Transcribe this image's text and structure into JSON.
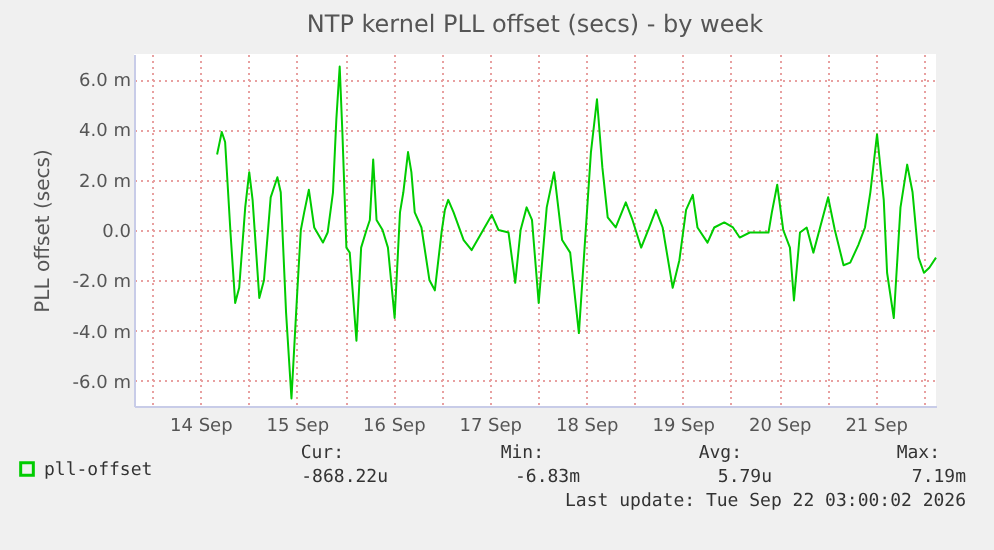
{
  "chart_data": {
    "type": "line",
    "title": "NTP kernel PLL offset (secs) - by week",
    "ylabel": "PLL offset (secs)",
    "x": [
      "2026-09-14T16:10",
      "2026-09-14T17:20",
      "2026-09-14T18:10",
      "2026-09-14T19:30",
      "2026-09-14T20:40",
      "2026-09-14T21:40",
      "2026-09-14T23:10",
      "2026-09-15T00:10",
      "2026-09-15T01:00",
      "2026-09-15T02:40",
      "2026-09-15T03:50",
      "2026-09-15T05:30",
      "2026-09-15T07:10",
      "2026-09-15T08:00",
      "2026-09-15T09:20",
      "2026-09-15T10:40",
      "2026-09-15T12:10",
      "2026-09-15T13:00",
      "2026-09-15T13:50",
      "2026-09-15T15:00",
      "2026-09-15T16:20",
      "2026-09-15T18:30",
      "2026-09-15T19:40",
      "2026-09-15T21:00",
      "2026-09-15T21:50",
      "2026-09-15T22:40",
      "2026-09-15T23:20",
      "2026-09-16T00:20",
      "2026-09-16T01:10",
      "2026-09-16T02:50",
      "2026-09-16T04:00",
      "2026-09-16T05:20",
      "2026-09-16T06:10",
      "2026-09-16T07:00",
      "2026-09-16T07:50",
      "2026-09-16T09:20",
      "2026-09-16T10:40",
      "2026-09-16T12:20",
      "2026-09-16T13:40",
      "2026-09-16T14:30",
      "2026-09-16T15:40",
      "2026-09-16T16:30",
      "2026-09-16T17:20",
      "2026-09-16T19:00",
      "2026-09-16T21:00",
      "2026-09-16T22:20",
      "2026-09-17T00:00",
      "2026-09-17T00:50",
      "2026-09-17T01:40",
      "2026-09-17T03:00",
      "2026-09-17T05:30",
      "2026-09-17T07:30",
      "2026-09-17T10:00",
      "2026-09-17T12:30",
      "2026-09-17T14:10",
      "2026-09-17T16:40",
      "2026-09-17T18:20",
      "2026-09-17T19:40",
      "2026-09-17T21:10",
      "2026-09-17T22:30",
      "2026-09-18T00:10",
      "2026-09-18T02:10",
      "2026-09-18T04:00",
      "2026-09-18T06:00",
      "2026-09-18T08:00",
      "2026-09-18T10:10",
      "2026-09-18T11:50",
      "2026-09-18T13:10",
      "2026-09-18T14:40",
      "2026-09-18T16:00",
      "2026-09-18T17:20",
      "2026-09-18T19:20",
      "2026-09-18T21:50",
      "2026-09-18T23:30",
      "2026-09-19T01:40",
      "2026-09-19T03:40",
      "2026-09-19T05:20",
      "2026-09-19T07:00",
      "2026-09-19T09:30",
      "2026-09-19T11:10",
      "2026-09-19T12:50",
      "2026-09-19T14:30",
      "2026-09-19T15:40",
      "2026-09-19T18:10",
      "2026-09-19T19:50",
      "2026-09-19T22:20",
      "2026-09-20T00:30",
      "2026-09-20T02:10",
      "2026-09-20T04:40",
      "2026-09-20T09:20",
      "2026-09-20T10:10",
      "2026-09-20T11:30",
      "2026-09-20T13:00",
      "2026-09-20T14:40",
      "2026-09-20T15:40",
      "2026-09-20T17:10",
      "2026-09-20T18:50",
      "2026-09-20T20:30",
      "2026-09-20T22:10",
      "2026-09-21T00:10",
      "2026-09-21T01:50",
      "2026-09-21T04:00",
      "2026-09-21T05:40",
      "2026-09-21T07:40",
      "2026-09-21T09:20",
      "2026-09-21T10:40",
      "2026-09-21T12:20",
      "2026-09-21T14:00",
      "2026-09-21T14:50",
      "2026-09-21T16:30",
      "2026-09-21T18:10",
      "2026-09-21T19:50",
      "2026-09-21T21:10",
      "2026-09-21T22:40",
      "2026-09-22T00:00",
      "2026-09-22T01:20",
      "2026-09-22T03:00"
    ],
    "series": [
      {
        "name": "pll-offset",
        "color": "#00cc00",
        "values": [
          3.0,
          3.9,
          3.5,
          -0.1,
          -2.9,
          -2.3,
          0.9,
          2.3,
          1.2,
          -2.7,
          -2.0,
          1.3,
          2.1,
          1.5,
          -3.3,
          -6.7,
          -2.3,
          0,
          0.7,
          1.6,
          0.1,
          -0.5,
          -0.1,
          1.5,
          4.4,
          6.5,
          3.9,
          -0.7,
          -0.9,
          -4.4,
          -0.7,
          0,
          0.4,
          2.8,
          0.4,
          0,
          -0.7,
          -3.5,
          0.7,
          1.5,
          3.1,
          2.3,
          0.7,
          0.1,
          -2.0,
          -2.4,
          -0.1,
          0.8,
          1.2,
          0.7,
          -0.4,
          -0.8,
          -0.1,
          0.6,
          0,
          -0.1,
          -2.1,
          0,
          0.9,
          0.4,
          -2.9,
          0.9,
          2.3,
          -0.4,
          -0.9,
          -4.1,
          -0.1,
          3.1,
          5.2,
          2.5,
          0.5,
          0.1,
          1.1,
          0.4,
          -0.7,
          0.1,
          0.8,
          0.1,
          -2.3,
          -1.2,
          0.8,
          1.4,
          0.1,
          -0.5,
          0.1,
          0.3,
          0.1,
          -0.3,
          -0.1,
          -0.1,
          0.7,
          1.8,
          0,
          -0.7,
          -2.8,
          -0.1,
          0.1,
          -0.9,
          0.1,
          1.3,
          0,
          -1.4,
          -1.3,
          -0.6,
          0.1,
          1.5,
          3.8,
          1.2,
          -1.7,
          -3.5,
          0.9,
          2.6,
          1.5,
          -1.1,
          -1.7,
          -1.5,
          -1.1
        ]
      }
    ],
    "xlim": [
      "2026-09-13T19:30",
      "2026-09-22T03:00"
    ],
    "xticks": [
      {
        "value": "2026-09-14T00:00",
        "label": null
      },
      {
        "value": "2026-09-14T12:00",
        "label": "14 Sep"
      },
      {
        "value": "2026-09-15T00:00",
        "label": null
      },
      {
        "value": "2026-09-15T12:00",
        "label": "15 Sep"
      },
      {
        "value": "2026-09-16T00:00",
        "label": null
      },
      {
        "value": "2026-09-16T12:00",
        "label": "16 Sep"
      },
      {
        "value": "2026-09-17T00:00",
        "label": null
      },
      {
        "value": "2026-09-17T12:00",
        "label": "17 Sep"
      },
      {
        "value": "2026-09-18T00:00",
        "label": null
      },
      {
        "value": "2026-09-18T12:00",
        "label": "18 Sep"
      },
      {
        "value": "2026-09-19T00:00",
        "label": null
      },
      {
        "value": "2026-09-19T12:00",
        "label": "19 Sep"
      },
      {
        "value": "2026-09-20T00:00",
        "label": null
      },
      {
        "value": "2026-09-20T12:00",
        "label": "20 Sep"
      },
      {
        "value": "2026-09-21T00:00",
        "label": null
      },
      {
        "value": "2026-09-21T12:00",
        "label": "21 Sep"
      },
      {
        "value": "2026-09-22T00:00",
        "label": null
      }
    ],
    "ylim": [
      -7,
      7
    ],
    "yticks": [
      {
        "value": -6,
        "label": "-6.0 m"
      },
      {
        "value": -4,
        "label": "-4.0 m"
      },
      {
        "value": -2,
        "label": "-2.0 m"
      },
      {
        "value": 0,
        "label": "0.0"
      },
      {
        "value": 2,
        "label": "2.0 m"
      },
      {
        "value": 4,
        "label": "4.0 m"
      },
      {
        "value": 6,
        "label": "6.0 m"
      }
    ],
    "grid": true,
    "legend": "bottom left",
    "annotations": [
      "Cur:",
      "Min:",
      "Avg:",
      "Max:",
      "-868.22u",
      "-6.83m",
      "5.79u",
      "7.19m",
      "Last update: Tue Sep 22 03:00:02 2026"
    ]
  }
}
